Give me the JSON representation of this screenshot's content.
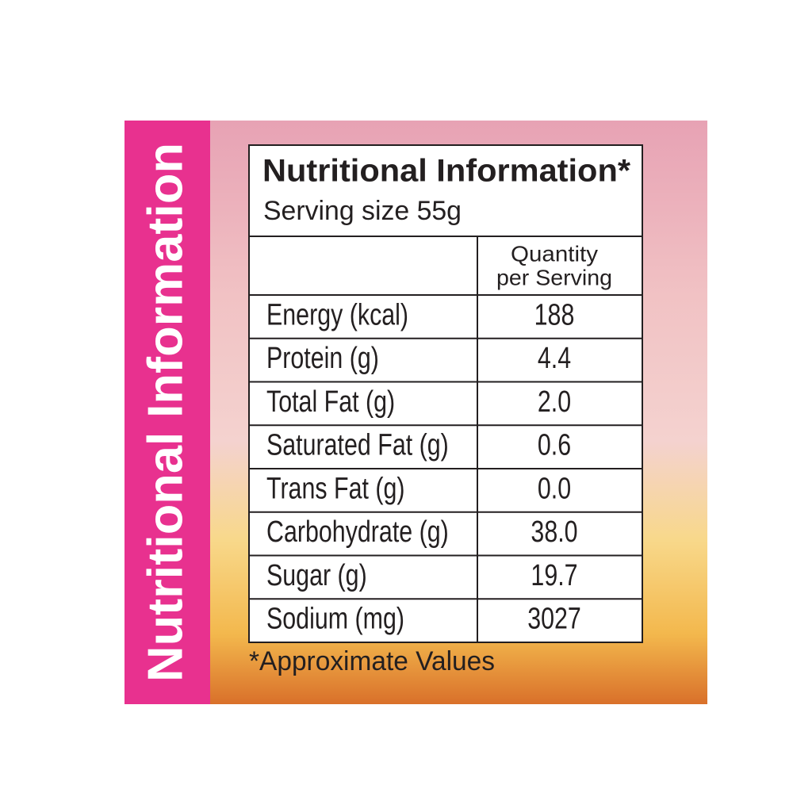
{
  "side_label": "Nutritional Information",
  "panel": {
    "title": "Nutritional Information*",
    "serving": "Serving size 55g",
    "column_header": [
      "Quantity",
      "per Serving"
    ],
    "rows": [
      [
        "Energy (kcal)",
        "188"
      ],
      [
        "Protein (g)",
        "4.4"
      ],
      [
        "Total Fat (g)",
        "2.0"
      ],
      [
        "Saturated Fat (g)",
        "0.6"
      ],
      [
        "Trans Fat (g)",
        "0.0"
      ],
      [
        "Carbohydrate (g)",
        "38.0"
      ],
      [
        "Sugar (g)",
        "19.7"
      ],
      [
        "Sodium (mg)",
        "3027"
      ]
    ],
    "footnote": "*Approximate Values"
  }
}
